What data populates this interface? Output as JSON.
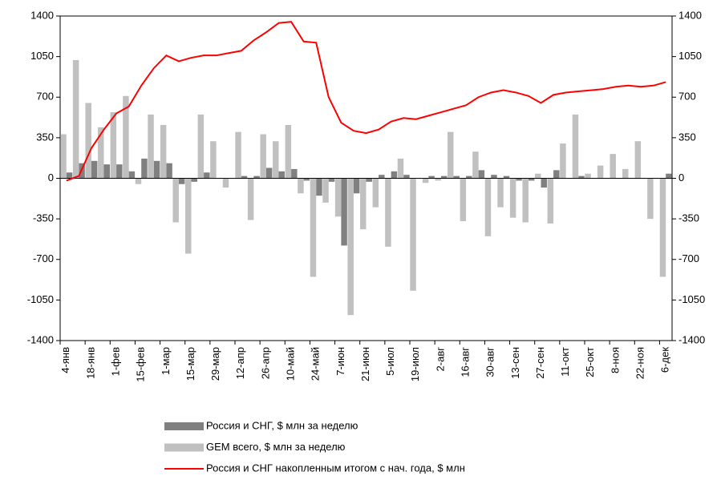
{
  "chart_data": {
    "type": "bar",
    "categories": [
      "4-янв",
      null,
      "18-янв",
      null,
      "1-фев",
      null,
      "15-фев",
      null,
      "1-мар",
      null,
      "15-мар",
      null,
      "29-мар",
      null,
      "12-апр",
      null,
      "26-апр",
      null,
      "10-май",
      null,
      "24-май",
      null,
      "7-июн",
      null,
      "21-июн",
      null,
      "5-июл",
      null,
      "19-июл",
      null,
      "2-авг",
      null,
      "16-авг",
      null,
      "30-авг",
      null,
      "13-сен",
      null,
      "27-сен",
      null,
      "11-окт",
      null,
      "25-окт",
      null,
      "8-ноя",
      null,
      "22-ноя",
      null,
      "6-дек"
    ],
    "series": [
      {
        "name": "Россия и СНГ, $ млн за неделю",
        "color": "#808080",
        "kind": "bar",
        "values": [
          50,
          130,
          150,
          120,
          120,
          60,
          170,
          150,
          130,
          -50,
          -30,
          50,
          0,
          0,
          20,
          20,
          90,
          60,
          80,
          -20,
          -150,
          -30,
          -580,
          -130,
          -30,
          30,
          60,
          30,
          0,
          20,
          20,
          20,
          20,
          70,
          30,
          20,
          -20,
          -20,
          -80,
          70,
          0,
          20,
          0,
          0,
          0,
          0,
          0,
          0,
          40
        ]
      },
      {
        "name": "GEM всего, $ млн за неделю",
        "color": "#c0c0c0",
        "kind": "bar",
        "values": [
          380,
          1020,
          650,
          440,
          570,
          710,
          -50,
          550,
          460,
          -380,
          -650,
          550,
          320,
          -80,
          400,
          -360,
          380,
          320,
          460,
          -130,
          -850,
          -210,
          -330,
          -1180,
          -440,
          -250,
          -590,
          170,
          -970,
          -40,
          -20,
          400,
          -370,
          230,
          -500,
          -250,
          -340,
          -380,
          40,
          -390,
          300,
          550,
          40,
          110,
          210,
          80,
          320,
          -350,
          -850
        ]
      },
      {
        "name": "Россия и СНГ накопленным итогом с нач. года, $ млн",
        "color": "#ff0000",
        "kind": "line",
        "values": [
          -20,
          20,
          260,
          420,
          560,
          620,
          800,
          950,
          1060,
          1010,
          1040,
          1060,
          1060,
          1080,
          1100,
          1190,
          1260,
          1340,
          1350,
          1180,
          1170,
          700,
          480,
          410,
          390,
          420,
          490,
          520,
          510,
          540,
          570,
          600,
          630,
          700,
          740,
          760,
          740,
          710,
          650,
          720,
          740,
          750,
          760,
          770,
          790,
          800,
          790,
          800,
          830
        ]
      }
    ],
    "ylim": [
      -1400,
      1400
    ],
    "yticks": [
      -1400,
      -1050,
      -700,
      -350,
      0,
      350,
      700,
      1050,
      1400
    ],
    "y2lim": [
      -1400,
      1400
    ],
    "y2ticks": [
      -1400,
      -1050,
      -700,
      -350,
      0,
      350,
      700,
      1050,
      1400
    ]
  }
}
